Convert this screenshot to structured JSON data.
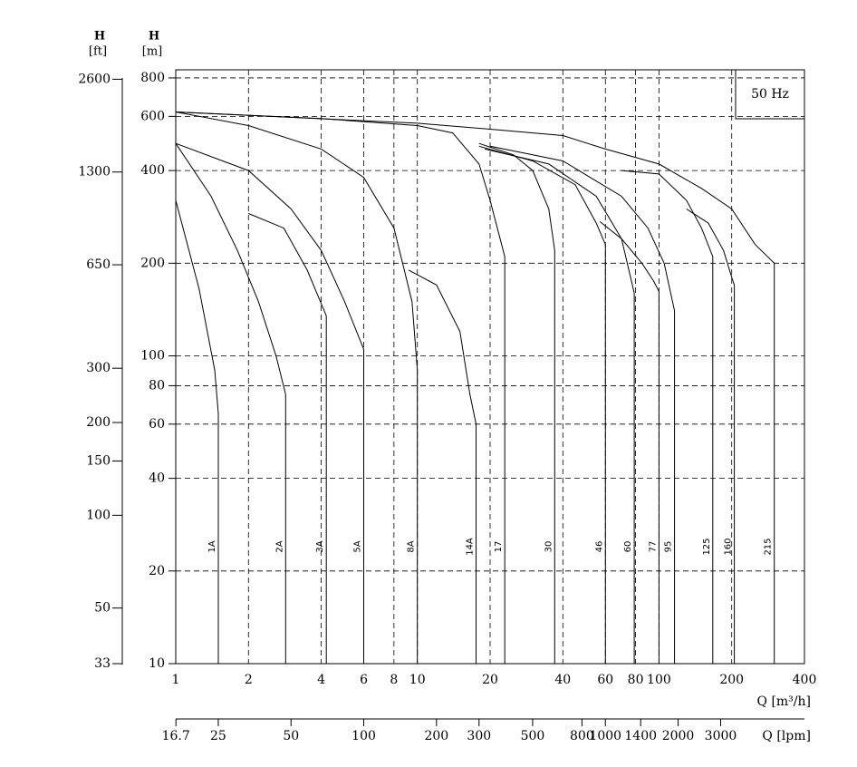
{
  "chart_data": {
    "type": "line",
    "annotation": "50 Hz",
    "x_label": "Q [m³/h]",
    "x2_label": "Q [lpm]",
    "y_label": [
      "H",
      "[m]"
    ],
    "y2_label": [
      "H",
      "[ft]"
    ],
    "log_x": true,
    "log_y": true,
    "grid": true,
    "xlim": [
      1,
      400
    ],
    "xticks": [
      1,
      2,
      4,
      6,
      8,
      10,
      20,
      40,
      60,
      80,
      100,
      200,
      400
    ],
    "x2lim": [
      16.67,
      6667
    ],
    "x2ticks": [
      16.7,
      25,
      50,
      100,
      200,
      300,
      500,
      800,
      1000,
      1400,
      2000,
      3000
    ],
    "ylim": [
      10,
      850
    ],
    "yticks": [
      10,
      20,
      40,
      60,
      80,
      100,
      200,
      400,
      600,
      800
    ],
    "y2lim": [
      33,
      2790
    ],
    "y2ticks": [
      33,
      50,
      100,
      150,
      200,
      300,
      650,
      1300,
      2600
    ],
    "series": [
      {
        "name": "1A",
        "color": "#000000",
        "x": [
          1,
          1.25,
          1.45,
          1.5,
          1.5
        ],
        "values": [
          320,
          165,
          90,
          65,
          10
        ]
      },
      {
        "name": "2A",
        "color": "#000000",
        "x": [
          1,
          1.4,
          1.8,
          2.2,
          2.6,
          2.85,
          2.85
        ],
        "values": [
          490,
          330,
          220,
          150,
          100,
          75,
          10
        ]
      },
      {
        "name": "3A",
        "color": "#000000",
        "x": [
          2,
          2.8,
          3.5,
          4.2,
          4.2
        ],
        "values": [
          290,
          260,
          190,
          135,
          10
        ]
      },
      {
        "name": "5A",
        "color": "#000000",
        "x": [
          1,
          2,
          3,
          4,
          5,
          6,
          6
        ],
        "values": [
          490,
          400,
          300,
          220,
          150,
          105,
          10
        ]
      },
      {
        "name": "8A",
        "color": "#000000",
        "x": [
          1,
          2,
          4,
          6,
          8,
          9.5,
          10,
          10
        ],
        "values": [
          620,
          560,
          470,
          380,
          260,
          150,
          90,
          10
        ]
      },
      {
        "name": "14A",
        "color": "#000000",
        "x": [
          9.2,
          12,
          15,
          16.5,
          17.5,
          17.5
        ],
        "values": [
          190,
          170,
          120,
          75,
          60,
          10
        ]
      },
      {
        "name": "17",
        "color": "#000000",
        "x": [
          1,
          4,
          10,
          14,
          18,
          20,
          23,
          23
        ],
        "values": [
          620,
          590,
          560,
          530,
          420,
          320,
          210,
          10
        ]
      },
      {
        "name": "30",
        "color": "#000000",
        "x": [
          18,
          25,
          30,
          35,
          37,
          37
        ],
        "values": [
          490,
          450,
          400,
          300,
          220,
          10
        ]
      },
      {
        "name": "46",
        "color": "#000000",
        "x": [
          18,
          30,
          45,
          55,
          60,
          60
        ],
        "values": [
          480,
          430,
          360,
          270,
          230,
          10
        ]
      },
      {
        "name": "60",
        "color": "#000000",
        "x": [
          19,
          35,
          55,
          70,
          79,
          79
        ],
        "values": [
          470,
          420,
          330,
          240,
          160,
          10
        ]
      },
      {
        "name": "77",
        "color": "#000000",
        "x": [
          57,
          70,
          85,
          95,
          100,
          100
        ],
        "values": [
          273,
          240,
          200,
          175,
          162,
          10
        ]
      },
      {
        "name": "95",
        "color": "#000000",
        "x": [
          20,
          40,
          70,
          90,
          105,
          116,
          116
        ],
        "values": [
          480,
          430,
          330,
          260,
          200,
          140,
          10
        ]
      },
      {
        "name": "125",
        "color": "#000000",
        "x": [
          70,
          100,
          130,
          150,
          167,
          167
        ],
        "values": [
          400,
          390,
          320,
          260,
          210,
          10
        ]
      },
      {
        "name": "160",
        "color": "#000000",
        "x": [
          130,
          160,
          185,
          200,
          205,
          205
        ],
        "values": [
          300,
          270,
          220,
          180,
          170,
          10
        ]
      },
      {
        "name": "215",
        "color": "#000000",
        "x": [
          1,
          10,
          20,
          40,
          60,
          100,
          150,
          200,
          250,
          300,
          300
        ],
        "values": [
          620,
          570,
          545,
          520,
          470,
          420,
          350,
          300,
          230,
          200,
          10
        ]
      }
    ]
  }
}
